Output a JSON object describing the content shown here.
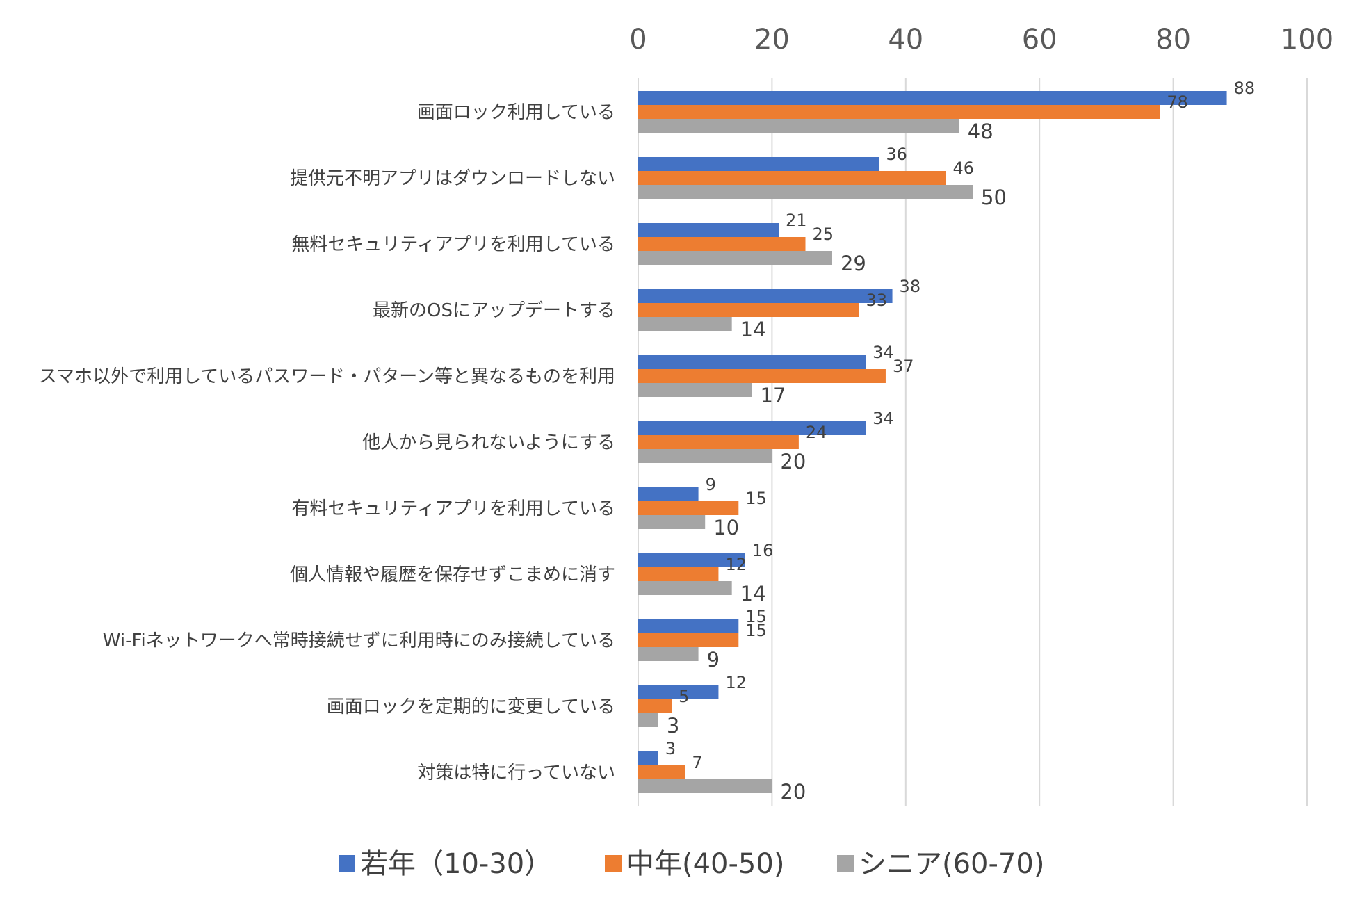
{
  "chart_data": {
    "type": "bar",
    "orientation": "horizontal",
    "categories": [
      "画面ロック利用している",
      "提供元不明アプリはダウンロードしない",
      "無料セキュリティアプリを利用している",
      "最新のOSにアップデートする",
      "スマホ以外で利用しているパスワード・パターン等と異なるものを利用",
      "他人から見られないようにする",
      "有料セキュリティアプリを利用している",
      "個人情報や履歴を保存せずこまめに消す",
      "Wi-Fiネットワークへ常時接続せずに利用時にのみ接続している",
      "画面ロックを定期的に変更している",
      "対策は特に行っていない"
    ],
    "series": [
      {
        "name": "若年（10-30）",
        "color": "#4472C4",
        "values": [
          88,
          36,
          21,
          38,
          34,
          34,
          9,
          16,
          15,
          12,
          3
        ]
      },
      {
        "name": "中年(40-50)",
        "color": "#ED7D31",
        "values": [
          78,
          46,
          25,
          33,
          37,
          24,
          15,
          12,
          15,
          5,
          7
        ]
      },
      {
        "name": "シニア(60-70)",
        "color": "#A5A5A5",
        "values": [
          48,
          50,
          29,
          14,
          17,
          20,
          10,
          14,
          9,
          3,
          20
        ]
      }
    ],
    "xlim": [
      0,
      100
    ],
    "xticks": [
      "0",
      "20",
      "40",
      "60",
      "80",
      "100"
    ],
    "xaxis_position": "top",
    "grid": true,
    "legend_position": "bottom"
  }
}
